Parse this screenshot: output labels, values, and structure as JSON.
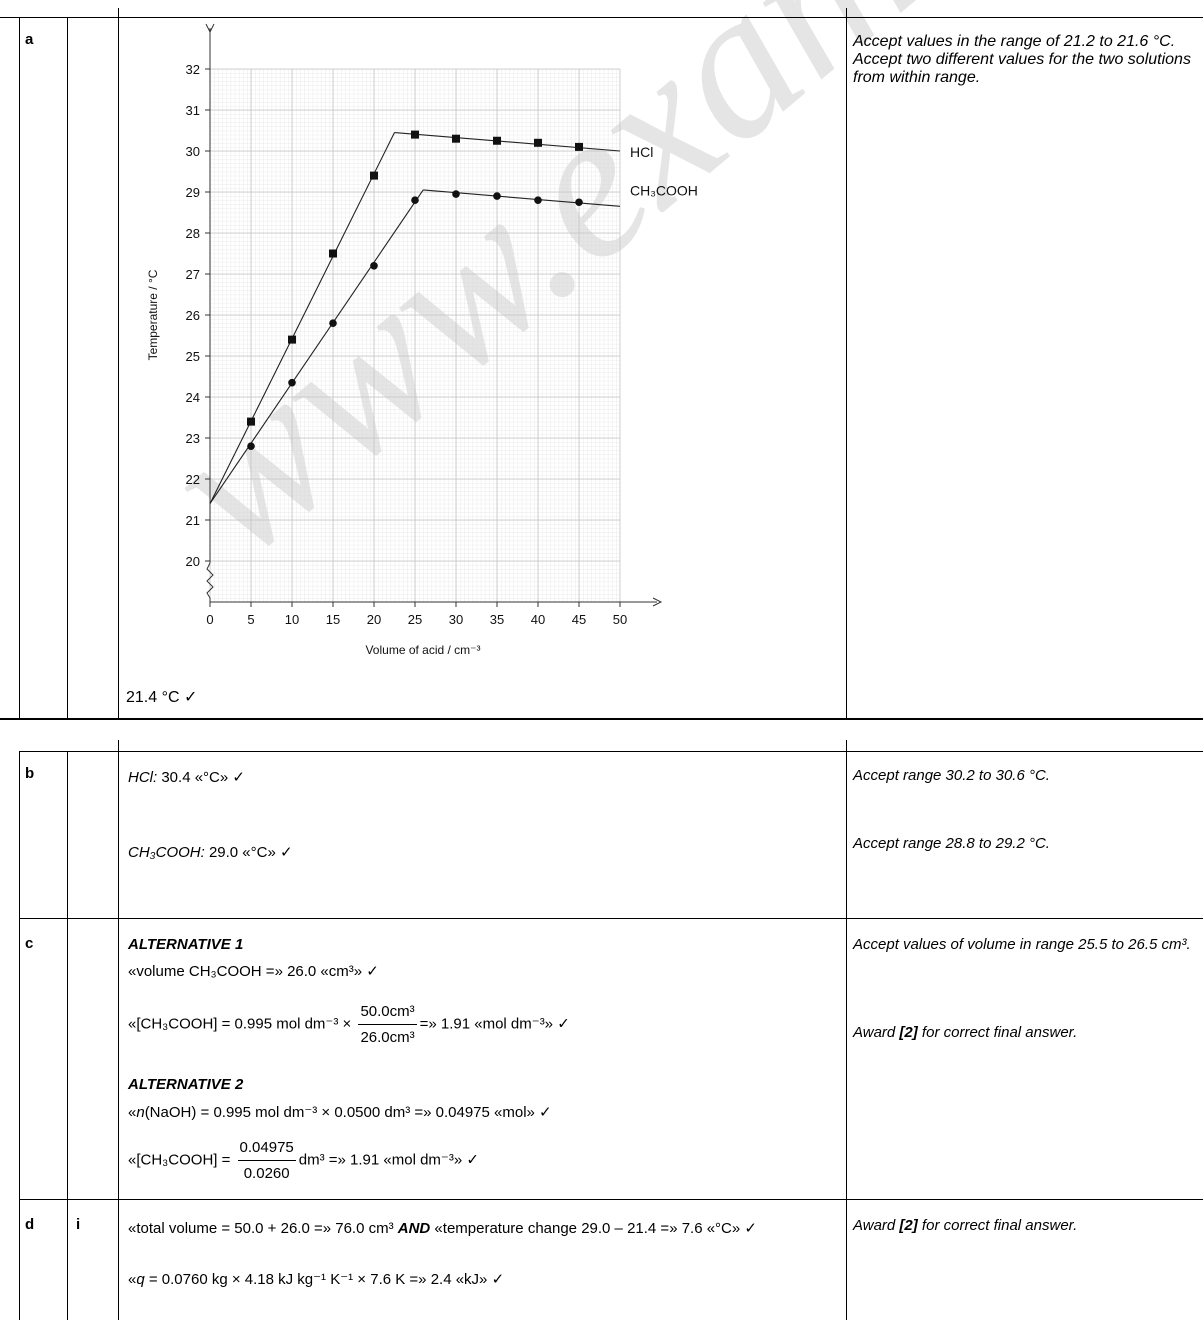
{
  "part_a": {
    "label": "a",
    "answer": "21.4 °C ✓",
    "notes": [
      "Accept values in the range of 21.2 to 21.6 °C.",
      "Accept two different values for the two solutions from within range."
    ]
  },
  "chart_data": {
    "type": "line",
    "xlabel": "Volume of acid / cm⁻³",
    "ylabel": "Temperature / °C",
    "xlim": [
      0,
      50
    ],
    "ylim": [
      20,
      32
    ],
    "x_ticks": [
      "0",
      "5",
      "10",
      "15",
      "20",
      "25",
      "30",
      "35",
      "40",
      "45",
      "50"
    ],
    "y_ticks": [
      "20",
      "21",
      "22",
      "23",
      "24",
      "25",
      "26",
      "27",
      "28",
      "29",
      "30",
      "31",
      "32"
    ],
    "axis_break": "zigzag on y-axis below 20",
    "grid": true,
    "series": [
      {
        "name": "HCl",
        "marker": "square",
        "x": [
          5,
          10,
          15,
          20,
          25,
          30,
          35,
          40,
          45
        ],
        "y": [
          23.4,
          25.4,
          27.5,
          29.4,
          30.4,
          30.3,
          30.25,
          30.2,
          30.1
        ],
        "fit_lines": [
          [
            [
              0,
              21.4
            ],
            [
              22.5,
              30.45
            ]
          ],
          [
            [
              22.5,
              30.45
            ],
            [
              50,
              30.0
            ]
          ]
        ]
      },
      {
        "name": "CH₃COOH",
        "marker": "circle",
        "x": [
          5,
          10,
          15,
          20,
          25,
          30,
          35,
          40,
          45
        ],
        "y": [
          22.8,
          24.35,
          25.8,
          27.2,
          28.8,
          28.95,
          28.9,
          28.8,
          28.75
        ],
        "fit_lines": [
          [
            [
              0,
              21.4
            ],
            [
              26,
              29.05
            ]
          ],
          [
            [
              26,
              29.05
            ],
            [
              50,
              28.65
            ]
          ]
        ]
      }
    ]
  },
  "part_b": {
    "label": "b",
    "hcl_name": "HCl:",
    "hcl_value": " 30.4 «°C» ✓",
    "ch3_name": "CH₃COOH:",
    "ch3_value": " 29.0 «°C» ✓",
    "note1": "Accept range 30.2 to 30.6 °C.",
    "note2": "Accept range 28.8 to 29.2 °C."
  },
  "part_c": {
    "label": "c",
    "alt1": "ALTERNATIVE 1",
    "alt1_line1": "«volume CH₃COOH =» 26.0 «cm³» ✓",
    "alt1_line2_pre": "«[CH₃COOH] = 0.995 mol dm⁻³ × ",
    "alt1_frac_num": "50.0cm³",
    "alt1_frac_den": "26.0cm³",
    "alt1_line2_post": "=» 1.91 «mol dm⁻³» ✓",
    "alt2": "ALTERNATIVE 2",
    "alt2_line1_pre": "«",
    "alt2_line1_n": "n",
    "alt2_line1_post": "(NaOH) = 0.995 mol dm⁻³ × 0.0500 dm³ =» 0.04975 «mol» ✓",
    "alt2_line2_pre": "«[CH₃COOH] = ",
    "alt2_frac_num": "0.04975",
    "alt2_frac_den": "0.0260",
    "alt2_line2_post": "dm³ =» 1.91 «mol dm⁻³» ✓",
    "note1": "Accept values of volume in range 25.5 to 26.5 cm³.",
    "note2_pre": "Award ",
    "note2_bold": "[2]",
    "note2_post": " for correct final answer."
  },
  "part_d": {
    "label": "d",
    "sublabel": "i",
    "line1_pre": "«total volume = 50.0 + 26.0 =» 76.0 cm³ ",
    "line1_and": "AND",
    "line1_post": " «temperature change 29.0 – 21.4 =» 7.6 «°C» ✓",
    "line2_pre": "«",
    "line2_q": "q",
    "line2_post": " = 0.0760 kg × 4.18 kJ kg⁻¹ K⁻¹ × 7.6 K =» 2.4 «kJ» ✓",
    "note_pre": "Award ",
    "note_bold": "[2]",
    "note_post": " for correct final answer."
  },
  "watermark": "www.exam-mate.com"
}
